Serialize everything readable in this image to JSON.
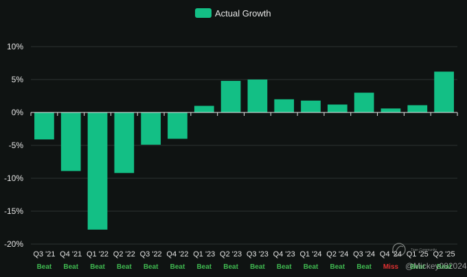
{
  "chart_data": {
    "type": "bar",
    "title": "",
    "xlabel": "",
    "ylabel": "",
    "legend": {
      "label": "Actual Growth",
      "position": "top-center"
    },
    "ylim": [
      -20,
      10
    ],
    "yticks": [
      10,
      5,
      0,
      -5,
      -10,
      -15,
      -20
    ],
    "ytick_labels": [
      "10%",
      "5%",
      "0%",
      "-5%",
      "-10%",
      "-15%",
      "-20%"
    ],
    "grid": true,
    "categories": [
      "Q3 '21",
      "Q4 '21",
      "Q1 '22",
      "Q2 '22",
      "Q3 '22",
      "Q4 '22",
      "Q1 '23",
      "Q2 '23",
      "Q3 '23",
      "Q4 '23",
      "Q1 '24",
      "Q2 '24",
      "Q3 '24",
      "Q4 '24",
      "Q1 '25",
      "Q2 '25"
    ],
    "series": [
      {
        "name": "Actual Growth",
        "values": [
          -4.1,
          -8.9,
          -17.8,
          -9.2,
          -4.9,
          -4.0,
          1.0,
          4.8,
          5.0,
          2.0,
          1.8,
          1.2,
          3.0,
          0.6,
          1.1,
          6.2
        ]
      }
    ],
    "status_labels": [
      "Beat",
      "Beat",
      "Beat",
      "Beat",
      "Beat",
      "Beat",
      "Beat",
      "Beat",
      "Beat",
      "Beat",
      "Beat",
      "Beat",
      "Beat",
      "Miss",
      "Beat",
      "Beat"
    ]
  },
  "colors": {
    "bar": "#13bf85",
    "beat": "#3fb950",
    "miss": "#e03131",
    "grid": "#2c3331",
    "axis": "#e6e6e6"
  },
  "watermark": {
    "handle": "@Mickey082024",
    "brand": "Tiger Community"
  }
}
